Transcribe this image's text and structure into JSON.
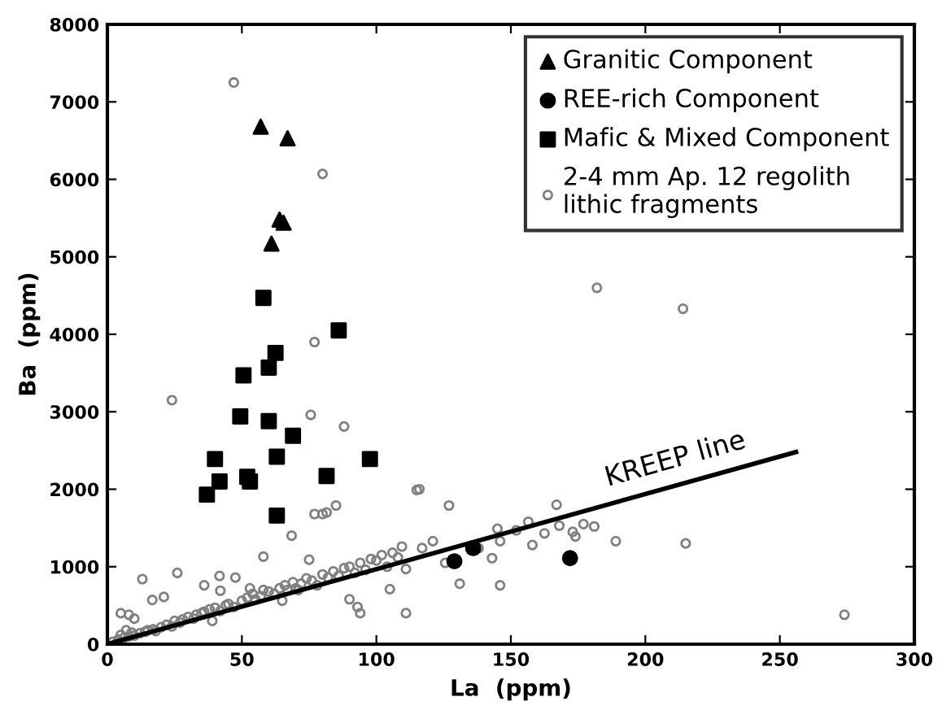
{
  "chart_data": {
    "type": "scatter",
    "xlabel": "La  (ppm)",
    "ylabel": "Ba  (ppm)",
    "xlim": [
      0,
      300
    ],
    "ylim": [
      0,
      8000
    ],
    "xticks": [
      0,
      50,
      100,
      150,
      200,
      250,
      300
    ],
    "yticks": [
      0,
      1000,
      2000,
      3000,
      4000,
      5000,
      6000,
      7000,
      8000
    ],
    "grid": false,
    "legend": "top right",
    "annotations": [
      "KREEP line"
    ],
    "series": [
      {
        "name": "Granitic Component",
        "color": "#000000",
        "marker": "triangle",
        "x": [
          57,
          67,
          64,
          65.5,
          61
        ],
        "values": [
          6680,
          6530,
          5480,
          5440,
          5170
        ]
      },
      {
        "name": "REE-rich Component",
        "color": "#000000",
        "marker": "circle",
        "x": [
          129,
          136,
          172
        ],
        "values": [
          1070,
          1240,
          1110
        ]
      },
      {
        "name": "Mafic & Mixed Component",
        "color": "#000000",
        "marker": "square",
        "x": [
          58,
          86,
          62.5,
          60,
          50.6,
          49.4,
          60,
          69,
          40,
          63,
          97.6,
          81.5,
          41.7,
          52,
          53,
          37,
          63
        ],
        "values": [
          4470,
          4050,
          3760,
          3570,
          3470,
          2940,
          2880,
          2690,
          2390,
          2420,
          2390,
          2170,
          2100,
          2160,
          2100,
          1930,
          1660
        ]
      },
      {
        "name": "2-4 mm Ap. 12 regolith\nlithic fragments",
        "color": "#808080",
        "marker": "circle",
        "x": [
          47,
          80,
          77,
          182,
          214,
          24,
          75.6,
          88,
          115,
          77,
          80,
          81.5,
          85,
          68.5,
          58,
          75,
          47.6,
          26,
          13,
          16.7,
          21,
          41.7,
          42,
          94,
          93,
          105,
          116,
          127,
          167,
          156.5,
          145,
          152,
          168,
          177,
          181,
          173,
          174,
          162.5,
          158,
          146,
          189,
          215,
          274,
          131,
          146,
          143,
          138,
          121,
          117,
          125.6,
          111,
          111,
          109.5,
          2,
          4,
          5,
          6,
          7,
          8,
          9,
          10,
          12,
          14,
          15,
          17,
          18,
          20,
          22,
          24,
          25,
          27,
          28,
          30,
          32,
          33,
          35,
          36,
          38,
          40,
          42,
          44,
          45,
          47,
          50,
          52,
          54,
          55,
          57,
          58,
          60,
          62,
          64,
          66,
          67,
          69,
          70,
          72,
          74,
          76,
          78,
          80,
          82,
          84,
          86,
          88,
          90,
          92,
          94,
          96,
          98,
          100,
          102,
          104,
          106,
          108,
          5,
          8,
          10,
          36,
          39,
          53,
          65,
          71,
          90
        ],
        "values": [
          7250,
          6070,
          3900,
          4600,
          4330,
          3150,
          2960,
          2810,
          1990,
          1680,
          1680,
          1700,
          1790,
          1400,
          1130,
          1090,
          860,
          920,
          840,
          570,
          610,
          880,
          690,
          400,
          480,
          710,
          2000,
          1790,
          1800,
          1580,
          1490,
          1470,
          1530,
          1550,
          1520,
          1450,
          1390,
          1430,
          1280,
          1330,
          1330,
          1300,
          380,
          780,
          760,
          1110,
          1240,
          1330,
          1240,
          1050,
          970,
          400,
          1260,
          30,
          60,
          120,
          80,
          180,
          100,
          150,
          110,
          140,
          160,
          180,
          190,
          170,
          220,
          250,
          230,
          300,
          280,
          320,
          350,
          330,
          380,
          400,
          420,
          450,
          470,
          430,
          500,
          520,
          480,
          560,
          600,
          650,
          580,
          620,
          700,
          680,
          650,
          720,
          760,
          700,
          800,
          720,
          780,
          850,
          820,
          760,
          900,
          860,
          940,
          880,
          980,
          1000,
          920,
          1050,
          960,
          1100,
          1080,
          1150,
          1000,
          1180,
          1120,
          400,
          380,
          330,
          760,
          300,
          720,
          560,
          700,
          580
        ]
      },
      {
        "type": "line",
        "color": "#000000",
        "line_style": "solid",
        "marker": "none",
        "x": [
          0,
          256
        ],
        "values": [
          0,
          2480
        ]
      }
    ]
  }
}
